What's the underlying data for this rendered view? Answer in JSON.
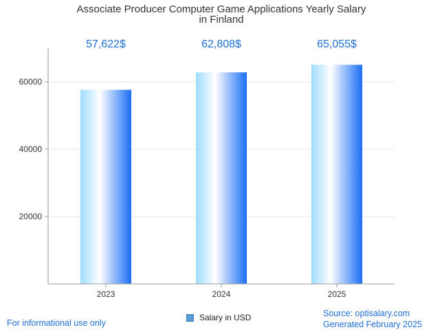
{
  "chart_data": {
    "type": "bar",
    "title_lines": [
      "Associate Producer Computer Game Applications Yearly Salary",
      "in Finland"
    ],
    "categories": [
      "2023",
      "2024",
      "2025"
    ],
    "series": [
      {
        "name": "Salary in USD",
        "values": [
          57622,
          62808,
          65055
        ]
      }
    ],
    "data_labels": [
      "57,622$",
      "62,808$",
      "65,055$"
    ],
    "y_ticks": [
      "20000",
      "40000",
      "60000"
    ],
    "ylim": [
      0,
      70000
    ],
    "grid": true,
    "legend_position": "bottom"
  },
  "colors": {
    "bar_edge": "#1a6ef5",
    "bar_light": "#9fdcff",
    "bar_highlight": "#ffffff",
    "data_label": "#1e6fd9"
  },
  "footer": {
    "left": "For informational use only",
    "source": "Source: optisalary.com",
    "generated": "Generated February 2025"
  }
}
